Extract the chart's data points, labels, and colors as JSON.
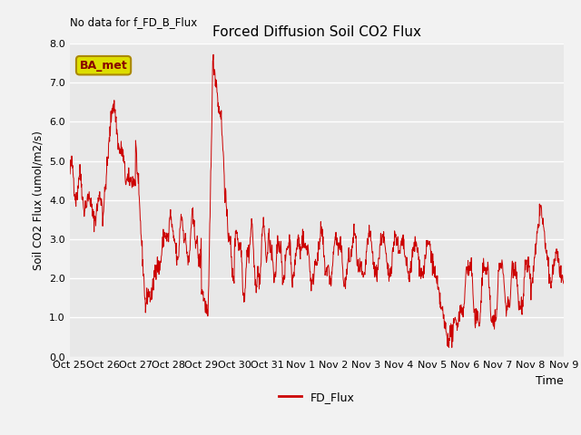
{
  "title": "Forced Diffusion Soil CO2 Flux",
  "ylabel": "Soil CO2 Flux (umol/m2/s)",
  "xlabel": "Time",
  "no_data_label": "No data for f_FD_B_Flux",
  "legend_label": "FD_Flux",
  "ba_met_label": "BA_met",
  "ylim": [
    0.0,
    8.0
  ],
  "yticks": [
    0.0,
    1.0,
    2.0,
    3.0,
    4.0,
    5.0,
    6.0,
    7.0,
    8.0
  ],
  "xtick_labels": [
    "Oct 25",
    "Oct 26",
    "Oct 27",
    "Oct 28",
    "Oct 29",
    "Oct 30",
    "Oct 31",
    "Nov 1",
    "Nov 2",
    "Nov 3",
    "Nov 4",
    "Nov 5",
    "Nov 6",
    "Nov 7",
    "Nov 8",
    "Nov 9"
  ],
  "line_color": "#cc0000",
  "bg_color": "#e8e8e8",
  "fig_bg": "#f2f2f2",
  "ba_met_bg": "#dddd00",
  "ba_met_border": "#aa8800",
  "ba_met_text": "#880000",
  "n_days": 15,
  "n_pts": 1500
}
